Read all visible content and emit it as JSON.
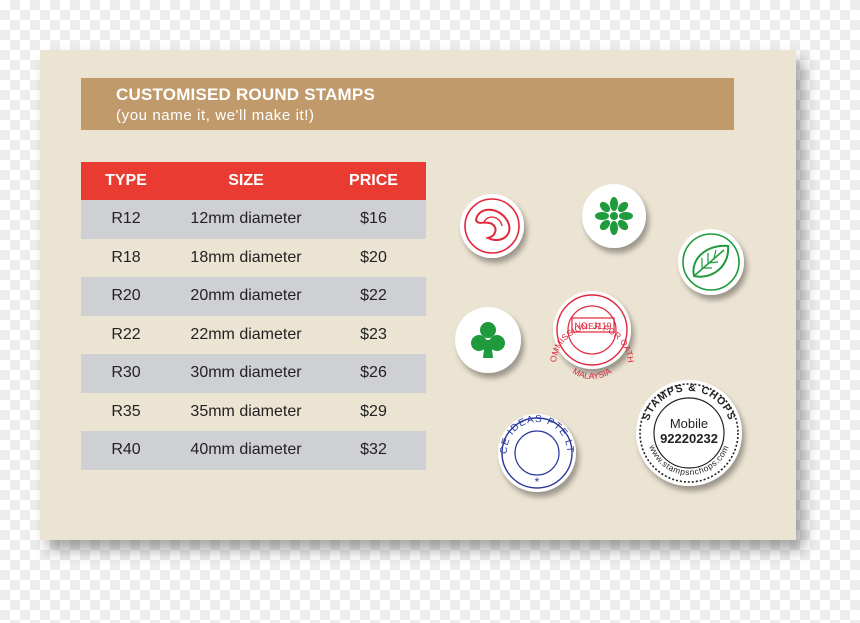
{
  "header": {
    "title": "CUSTOMISED ROUND STAMPS",
    "subtitle": "(you name it, we'll make it!)"
  },
  "table": {
    "columns": [
      "TYPE",
      "SIZE",
      "PRICE"
    ],
    "rows": [
      {
        "type": "R12",
        "size": "12mm diameter",
        "price": "$16"
      },
      {
        "type": "R18",
        "size": "18mm diameter",
        "price": "$20"
      },
      {
        "type": "R20",
        "size": "20mm diameter",
        "price": "$22"
      },
      {
        "type": "R22",
        "size": "22mm diameter",
        "price": "$23"
      },
      {
        "type": "R30",
        "size": "30mm diameter",
        "price": "$26"
      },
      {
        "type": "R35",
        "size": "35mm diameter",
        "price": "$29"
      },
      {
        "type": "R40",
        "size": "40mm diameter",
        "price": "$32"
      }
    ]
  },
  "stamps": {
    "commissioner": {
      "ring": "COMMISSIONER FOR OATHS",
      "center": "NO: J119",
      "bottom": "MALAYSIA"
    },
    "ace": {
      "ring": "ACE IDEAS PTE LTD",
      "star": "*"
    },
    "stampsnchops": {
      "top": "STAMPS & CHOPS",
      "label": "Mobile",
      "number": "92220232",
      "ring": "www.stampsnchops.com"
    }
  },
  "colors": {
    "banner": "#c09a6b",
    "table_header": "#e93b32",
    "row_shade": "#cfd0d3",
    "card": "#ece4d3",
    "stamp_red": "#e2263a",
    "stamp_green": "#1f9a3c",
    "stamp_blue": "#2d3a9c"
  }
}
